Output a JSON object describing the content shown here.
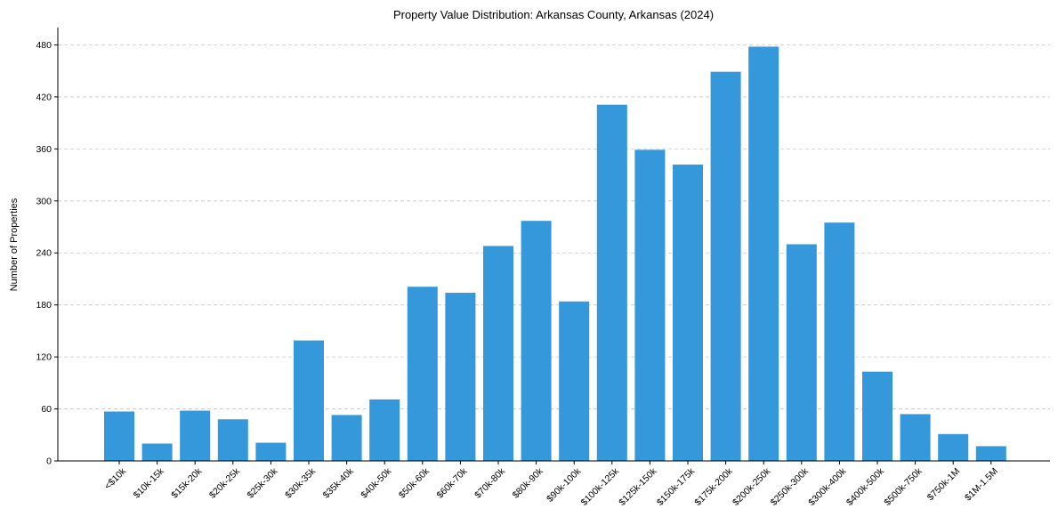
{
  "colors": {
    "bar": "#3498db"
  },
  "chart_data": {
    "type": "bar",
    "title": "Property Value Distribution: Arkansas County, Arkansas (2024)",
    "xlabel": "",
    "ylabel": "Number of Properties",
    "ylim": [
      0,
      500
    ],
    "yticks": [
      0,
      60,
      120,
      180,
      240,
      300,
      360,
      420,
      480
    ],
    "grid": "y-dashed",
    "categories": [
      "<$10k",
      "$10k-15k",
      "$15k-20k",
      "$20k-25k",
      "$25k-30k",
      "$30k-35k",
      "$35k-40k",
      "$40k-50k",
      "$50k-60k",
      "$60k-70k",
      "$70k-80k",
      "$80k-90k",
      "$90k-100k",
      "$100k-125k",
      "$125k-150k",
      "$150k-175k",
      "$175k-200k",
      "$200k-250k",
      "$250k-300k",
      "$300k-400k",
      "$400k-500k",
      "$500k-750k",
      "$750k-1M",
      "$1M-1.5M"
    ],
    "values": [
      57,
      20,
      58,
      48,
      21,
      139,
      53,
      71,
      201,
      194,
      248,
      277,
      184,
      411,
      359,
      342,
      449,
      478,
      250,
      275,
      103,
      54,
      31,
      17
    ]
  }
}
